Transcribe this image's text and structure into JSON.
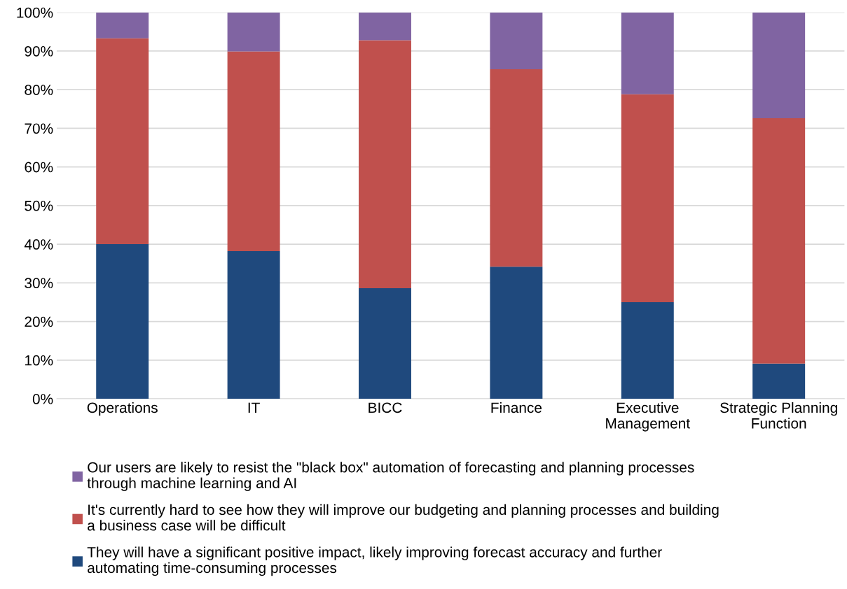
{
  "chart_data": {
    "type": "bar",
    "stacked": true,
    "categories": [
      "Operations",
      "IT",
      "BICC",
      "Finance",
      "Executive\nManagement",
      "Strategic Planning\nFunction"
    ],
    "series": [
      {
        "name": "They will have a significant positive impact, likely improving forecast accuracy and further automating time-consuming processes",
        "color": "#1f497d",
        "values": [
          40.0,
          38.2,
          28.6,
          34.2,
          25.0,
          9.1
        ]
      },
      {
        "name": "It's currently hard to see how they will improve our budgeting and planning processes and building a business case will be difficult",
        "color": "#c0504d",
        "values": [
          53.3,
          51.7,
          64.2,
          51.1,
          53.8,
          63.5
        ]
      },
      {
        "name": "Our users are likely to resist the \"black box\" automation of forecasting and planning processes through machine learning and AI",
        "color": "#8064a2",
        "values": [
          6.7,
          10.1,
          7.2,
          14.7,
          21.2,
          27.4
        ]
      }
    ],
    "ylim": [
      0,
      100
    ],
    "yticks": [
      {
        "value": 0,
        "label": "0%"
      },
      {
        "value": 10,
        "label": "10%"
      },
      {
        "value": 20,
        "label": "20%"
      },
      {
        "value": 30,
        "label": "30%"
      },
      {
        "value": 40,
        "label": "40%"
      },
      {
        "value": 50,
        "label": "50%"
      },
      {
        "value": 60,
        "label": "60%"
      },
      {
        "value": 70,
        "label": "70%"
      },
      {
        "value": 80,
        "label": "80%"
      },
      {
        "value": 90,
        "label": "90%"
      },
      {
        "value": 100,
        "label": "100%"
      }
    ],
    "grid": "y",
    "legend": "bottom"
  }
}
